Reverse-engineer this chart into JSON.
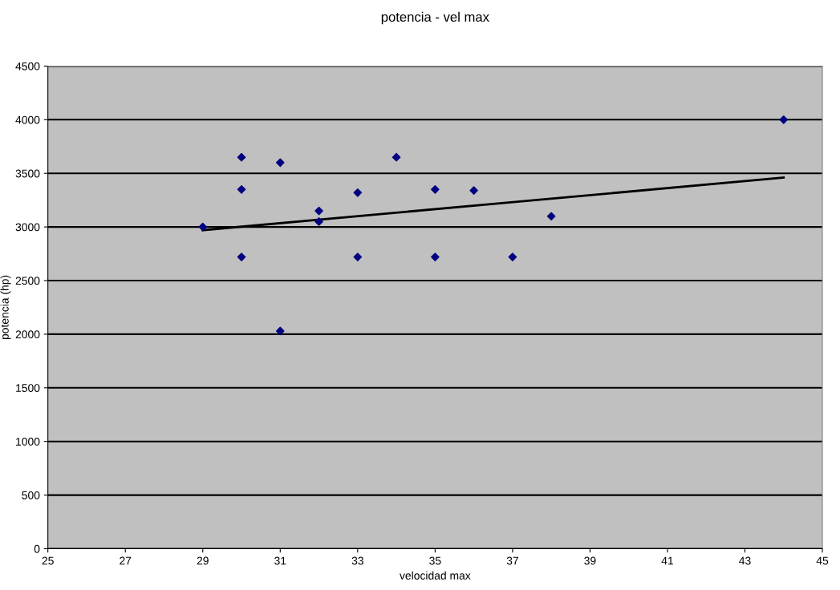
{
  "chart_data": {
    "type": "scatter",
    "title": "potencia - vel max",
    "xlabel": "velocidad max",
    "ylabel": "potencia (hp)",
    "xlim": [
      25,
      45
    ],
    "xticks": [
      25,
      27,
      29,
      31,
      33,
      35,
      37,
      39,
      41,
      43,
      45
    ],
    "ylim": [
      0,
      4500
    ],
    "yticks": [
      0,
      500,
      1000,
      1500,
      2000,
      2500,
      3000,
      3500,
      4000,
      4500
    ],
    "grid": "y",
    "series": [
      {
        "color": "#000080",
        "marker": "diamond",
        "x": [
          29,
          30,
          30,
          30,
          31,
          31,
          32,
          32,
          33,
          33,
          34,
          35,
          35,
          36,
          37,
          38,
          44
        ],
        "values": [
          3000,
          3650,
          3350,
          2720,
          3600,
          2030,
          3150,
          3050,
          3320,
          2720,
          3650,
          3350,
          2720,
          3340,
          2720,
          3100,
          4000
        ]
      },
      {
        "type": "line",
        "color": "#000000",
        "x": [
          29,
          44
        ],
        "values": [
          2970,
          3460
        ],
        "line_style": "solid",
        "marker": "none"
      }
    ]
  }
}
